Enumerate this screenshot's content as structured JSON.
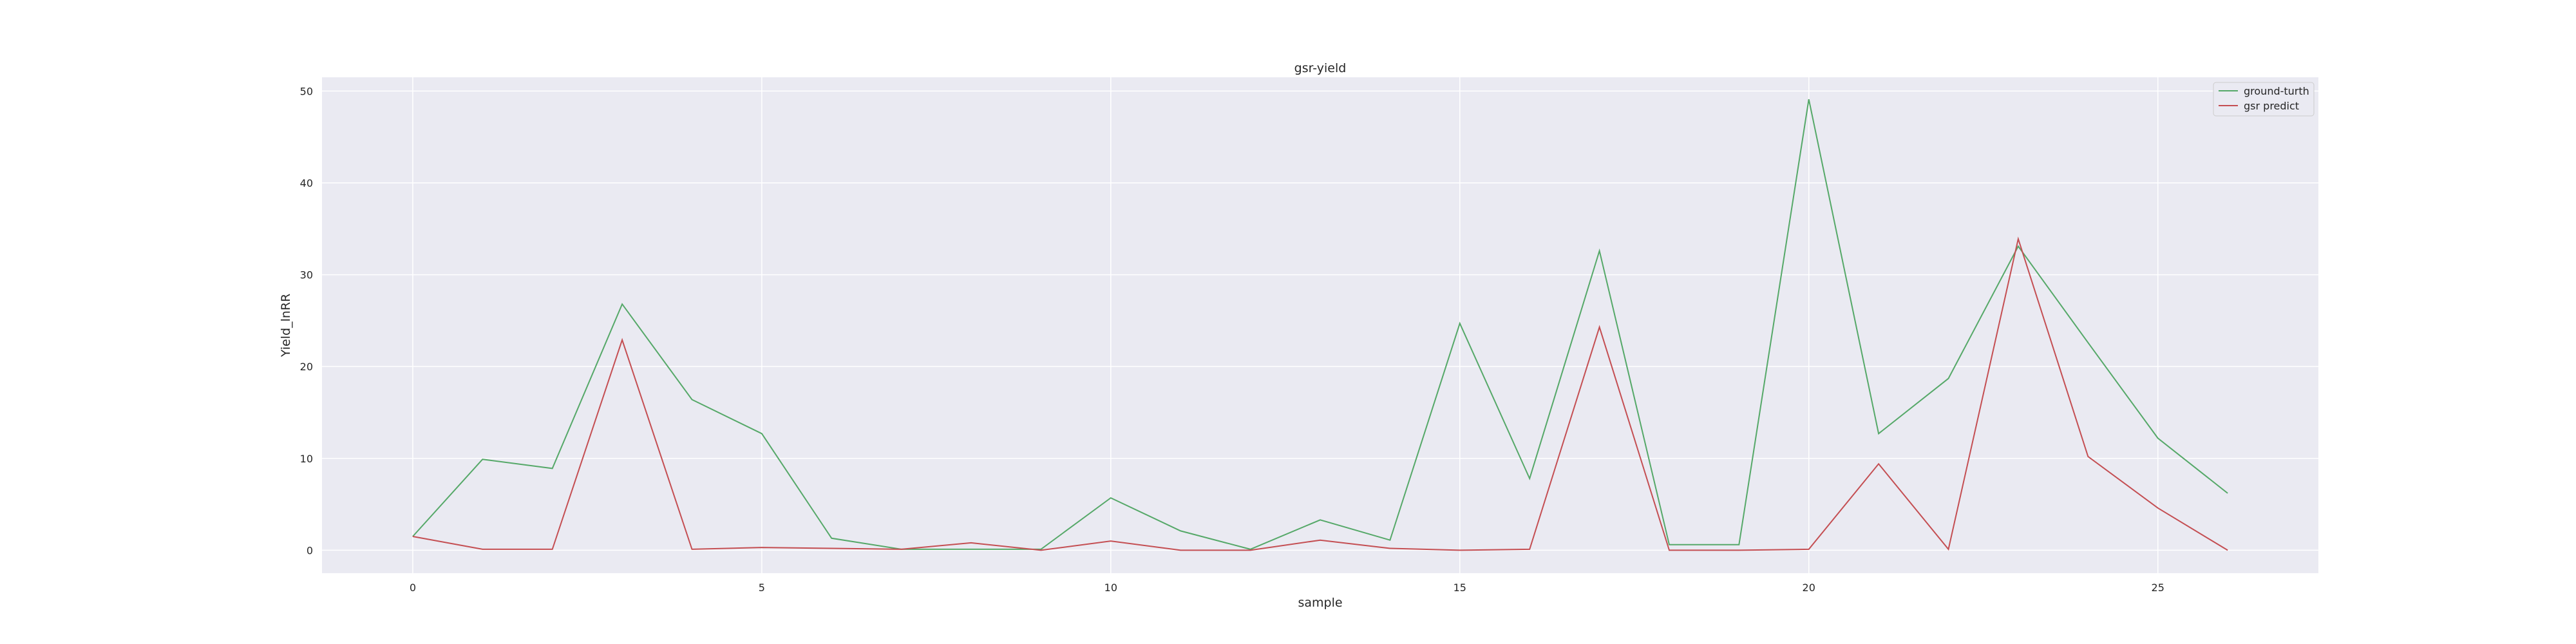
{
  "chart_data": {
    "type": "line",
    "title": "gsr-yield",
    "xlabel": "sample",
    "ylabel": "Yield_lnRR",
    "xlim": [
      -1.3,
      27.3
    ],
    "ylim": [
      -2.5,
      51.5
    ],
    "xticks": [
      0,
      5,
      10,
      15,
      20,
      25
    ],
    "yticks": [
      0,
      10,
      20,
      30,
      40,
      50
    ],
    "grid": true,
    "legend_position": "top-right",
    "x": [
      0,
      1,
      2,
      3,
      4,
      5,
      6,
      7,
      8,
      9,
      10,
      11,
      12,
      13,
      14,
      15,
      16,
      17,
      18,
      19,
      20,
      21,
      22,
      23,
      24,
      25,
      26
    ],
    "series": [
      {
        "name": "ground-turth",
        "color": "#55a868",
        "values": [
          1.5,
          9.9,
          8.9,
          26.8,
          16.4,
          12.7,
          1.3,
          0.1,
          0.1,
          0.1,
          5.7,
          2.1,
          0.1,
          3.3,
          1.1,
          24.7,
          7.8,
          32.6,
          0.6,
          0.6,
          49.1,
          12.7,
          18.7,
          33.1,
          22.6,
          12.2,
          6.2
        ]
      },
      {
        "name": "gsr predict",
        "color": "#c44e52",
        "values": [
          1.5,
          0.1,
          0.1,
          22.9,
          0.1,
          0.3,
          0.2,
          0.1,
          0.8,
          0.0,
          1.0,
          0.0,
          0.0,
          1.1,
          0.2,
          0.0,
          0.1,
          24.3,
          0.0,
          0.0,
          0.1,
          9.4,
          0.1,
          33.9,
          10.2,
          4.6,
          0.0
        ]
      }
    ],
    "colors": {
      "plot_background": "#eaeaf2",
      "grid": "#ffffff",
      "text": "#262626"
    }
  }
}
